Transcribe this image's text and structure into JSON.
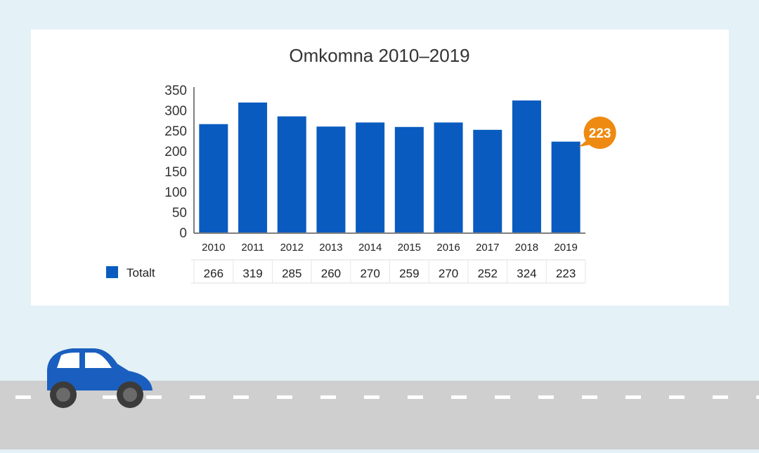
{
  "chart_data": {
    "type": "bar",
    "title": "Omkomna 2010–2019",
    "categories": [
      "2010",
      "2011",
      "2012",
      "2013",
      "2014",
      "2015",
      "2016",
      "2017",
      "2018",
      "2019"
    ],
    "series": [
      {
        "name": "Totalt",
        "values": [
          266,
          319,
          285,
          260,
          270,
          259,
          270,
          252,
          324,
          223
        ]
      }
    ],
    "ylim": [
      0,
      350
    ],
    "yticks": [
      0,
      50,
      100,
      150,
      200,
      250,
      300,
      350
    ],
    "grid": false,
    "legend": "bottom-left, as data table row",
    "data_table": true,
    "highlight": {
      "category": "2019",
      "label": "223"
    },
    "colors": {
      "bar": "#0a5bbf",
      "highlight_bubble": "#ee8a11"
    }
  },
  "scene": {
    "background": "#e4f1f6",
    "road_color": "#cfcfcf",
    "lane_color": "#ffffff",
    "car_color": "#1a5fbf"
  }
}
